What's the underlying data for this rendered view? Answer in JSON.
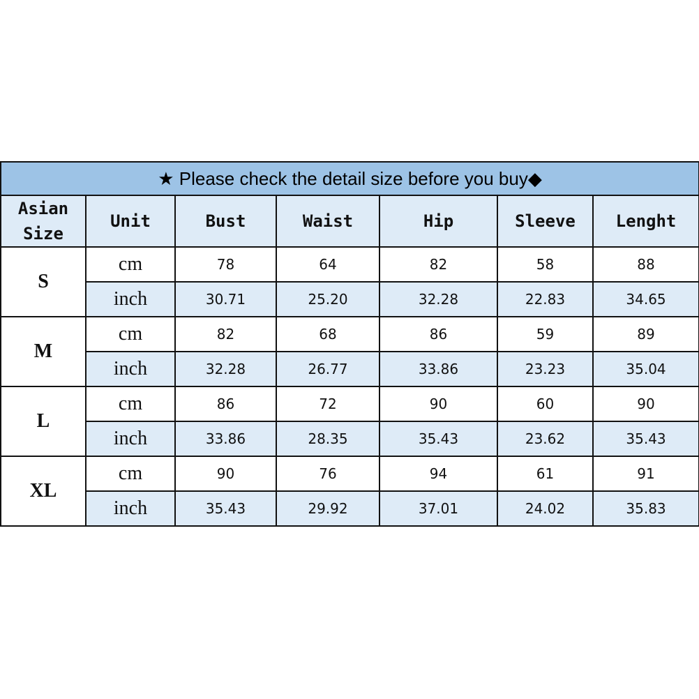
{
  "title": "★ Please check the detail size before you buy◆",
  "headers": [
    "Asian Size",
    "Unit",
    "Bust",
    "Waist",
    "Hip",
    "Sleeve",
    "Lenght"
  ],
  "colors": {
    "title_bg": "#9dc3e6",
    "header_bg": "#deebf7",
    "inch_row_bg": "#deebf7"
  },
  "sizes": [
    {
      "size": "S",
      "cm": {
        "unit": "cm",
        "values": [
          "78",
          "64",
          "82",
          "58",
          "88"
        ]
      },
      "inch": {
        "unit": "inch",
        "values": [
          "30.71",
          "25.20",
          "32.28",
          "22.83",
          "34.65"
        ]
      }
    },
    {
      "size": "M",
      "cm": {
        "unit": "cm",
        "values": [
          "82",
          "68",
          "86",
          "59",
          "89"
        ]
      },
      "inch": {
        "unit": "inch",
        "values": [
          "32.28",
          "26.77",
          "33.86",
          "23.23",
          "35.04"
        ]
      }
    },
    {
      "size": "L",
      "cm": {
        "unit": "cm",
        "values": [
          "86",
          "72",
          "90",
          "60",
          "90"
        ]
      },
      "inch": {
        "unit": "inch",
        "values": [
          "33.86",
          "28.35",
          "35.43",
          "23.62",
          "35.43"
        ]
      }
    },
    {
      "size": "XL",
      "cm": {
        "unit": "cm",
        "values": [
          "90",
          "76",
          "94",
          "61",
          "91"
        ]
      },
      "inch": {
        "unit": "inch",
        "values": [
          "35.43",
          "29.92",
          "37.01",
          "24.02",
          "35.83"
        ]
      }
    }
  ]
}
